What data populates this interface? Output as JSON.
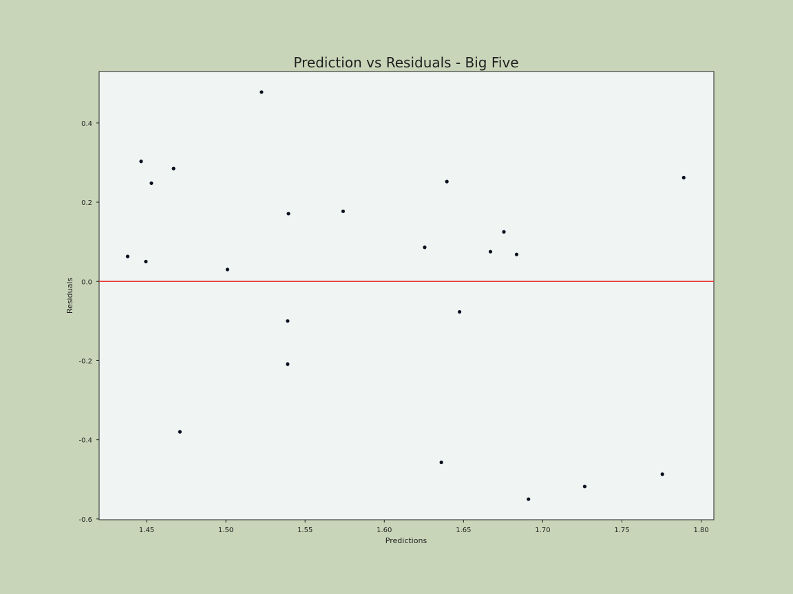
{
  "chart_data": {
    "type": "scatter",
    "title": "Prediction vs Residuals - Big Five",
    "xlabel": "Predictions",
    "ylabel": "Residuals",
    "xlim": [
      1.42,
      1.808
    ],
    "ylim": [
      -0.602,
      0.53
    ],
    "x_ticks": [
      1.45,
      1.5,
      1.55,
      1.6,
      1.65,
      1.7,
      1.75,
      1.8
    ],
    "x_tick_labels": [
      "1.45",
      "1.50",
      "1.55",
      "1.60",
      "1.65",
      "1.70",
      "1.75",
      "1.80"
    ],
    "y_ticks": [
      -0.6,
      -0.4,
      -0.2,
      0.0,
      0.2,
      0.4
    ],
    "y_tick_labels": [
      "-0.6",
      "-0.4",
      "-0.2",
      "0.0",
      "0.2",
      "0.4"
    ],
    "reference_line": {
      "y": 0.0,
      "color": "#e53935"
    },
    "grid": false,
    "colors": {
      "background": "#c9d5b9",
      "plot_area": "#f0f5f3",
      "points": "#0b1020",
      "reference_line": "#e53935"
    },
    "series": [
      {
        "x": [
          1.438,
          1.4465,
          1.4495,
          1.453,
          1.467,
          1.471,
          1.501,
          1.5225,
          1.539,
          1.539,
          1.5395,
          1.574,
          1.6255,
          1.636,
          1.6395,
          1.6475,
          1.667,
          1.6755,
          1.6835,
          1.691,
          1.7265,
          1.7755,
          1.789
        ],
        "y": [
          0.063,
          0.303,
          0.05,
          0.248,
          0.285,
          -0.38,
          0.03,
          0.478,
          -0.1,
          -0.209,
          0.171,
          0.177,
          0.086,
          -0.457,
          0.252,
          -0.077,
          0.075,
          0.125,
          0.068,
          -0.55,
          -0.518,
          -0.487,
          0.262
        ]
      }
    ]
  }
}
